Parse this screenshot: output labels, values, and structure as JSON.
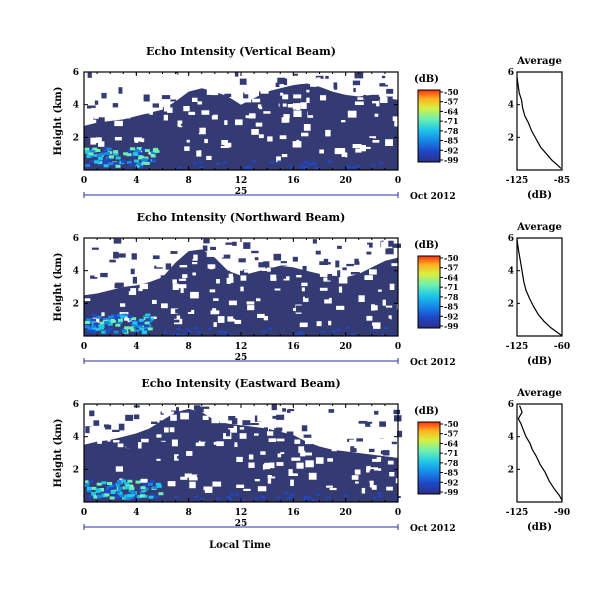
{
  "figure": {
    "date_label": "Oct 2012",
    "xlabel": "Local Time",
    "day_label": "25",
    "colorbar_unit": "(dB)",
    "colormap": [
      "#2b2f86",
      "#1e48c8",
      "#1888e8",
      "#1ec8e8",
      "#6ef0b0",
      "#d8f040",
      "#ffb020",
      "#ff3010"
    ],
    "fill_color": "#343a73"
  },
  "chart_data": [
    {
      "type": "heatmap",
      "title": "Echo Intensity (Vertical Beam)",
      "ylabel": "Height (km)",
      "x_ticks": [
        "0",
        "4",
        "8",
        "12",
        "16",
        "20",
        "0"
      ],
      "y_ticks": [
        "6",
        "4",
        "2"
      ],
      "xlim": [
        0,
        24
      ],
      "ylim": [
        0,
        6
      ],
      "colorbar_ticks": [
        "-50",
        "-57",
        "-64",
        "-71",
        "-78",
        "-85",
        "-92",
        "-99"
      ],
      "top_boundary_km": [
        [
          0,
          2.7
        ],
        [
          1,
          2.9
        ],
        [
          2,
          3.0
        ],
        [
          3,
          3.1
        ],
        [
          4,
          3.3
        ],
        [
          5,
          3.5
        ],
        [
          6,
          3.7
        ],
        [
          7,
          4.2
        ],
        [
          8,
          4.8
        ],
        [
          9,
          5.0
        ],
        [
          10,
          4.8
        ],
        [
          11,
          4.5
        ],
        [
          12,
          4.0
        ],
        [
          13,
          4.4
        ],
        [
          14,
          4.8
        ],
        [
          15,
          5.0
        ],
        [
          16,
          5.2
        ],
        [
          17,
          5.3
        ],
        [
          18,
          5.1
        ],
        [
          19,
          4.8
        ],
        [
          20,
          4.6
        ],
        [
          21,
          4.5
        ],
        [
          22,
          4.6
        ],
        [
          23,
          4.4
        ],
        [
          24,
          4.3
        ]
      ],
      "strong_echo_hours": [
        0,
        5.5
      ],
      "average": {
        "title": "Average",
        "xlabel": "(dB)",
        "x_ticks": [
          "-125",
          "-85"
        ],
        "xlim": [
          -125,
          -85
        ],
        "y_ticks": [
          "6",
          "4",
          "2"
        ],
        "profile": [
          [
            -125,
            5.7
          ],
          [
            -124,
            5.2
          ],
          [
            -123,
            4.7
          ],
          [
            -121,
            4.3
          ],
          [
            -120,
            3.8
          ],
          [
            -118,
            3.3
          ],
          [
            -115,
            2.9
          ],
          [
            -112,
            2.4
          ],
          [
            -108,
            1.9
          ],
          [
            -104,
            1.4
          ],
          [
            -99,
            1.0
          ],
          [
            -94,
            0.6
          ],
          [
            -89,
            0.3
          ],
          [
            -86,
            0.1
          ]
        ]
      }
    },
    {
      "type": "heatmap",
      "title": "Echo Intensity (Northward Beam)",
      "ylabel": "Height (km)",
      "x_ticks": [
        "0",
        "4",
        "8",
        "12",
        "16",
        "20",
        "0"
      ],
      "y_ticks": [
        "6",
        "4",
        "2"
      ],
      "xlim": [
        0,
        24
      ],
      "ylim": [
        0,
        6
      ],
      "colorbar_ticks": [
        "-50",
        "-57",
        "-64",
        "-71",
        "-78",
        "-85",
        "-92",
        "-99"
      ],
      "top_boundary_km": [
        [
          0,
          2.5
        ],
        [
          1,
          2.6
        ],
        [
          2,
          2.8
        ],
        [
          3,
          3.0
        ],
        [
          4,
          3.1
        ],
        [
          5,
          3.3
        ],
        [
          6,
          3.6
        ],
        [
          7,
          4.5
        ],
        [
          8,
          5.2
        ],
        [
          9,
          5.3
        ],
        [
          10,
          4.8
        ],
        [
          11,
          4.0
        ],
        [
          12,
          3.7
        ],
        [
          13,
          3.9
        ],
        [
          14,
          4.1
        ],
        [
          15,
          4.3
        ],
        [
          16,
          4.2
        ],
        [
          17,
          4.0
        ],
        [
          18,
          3.8
        ],
        [
          19,
          3.7
        ],
        [
          20,
          3.6
        ],
        [
          21,
          3.8
        ],
        [
          22,
          4.2
        ],
        [
          23,
          4.6
        ],
        [
          24,
          4.8
        ]
      ],
      "strong_echo_hours": [
        0,
        5.0
      ],
      "average": {
        "title": "Average",
        "xlabel": "(dB)",
        "x_ticks": [
          "-125",
          "-60"
        ],
        "xlim": [
          -125,
          -60
        ],
        "y_ticks": [
          "6",
          "4",
          "2"
        ],
        "profile": [
          [
            -125,
            5.9
          ],
          [
            -123,
            5.3
          ],
          [
            -121,
            4.8
          ],
          [
            -119,
            4.3
          ],
          [
            -117,
            3.8
          ],
          [
            -115,
            3.3
          ],
          [
            -112,
            2.8
          ],
          [
            -107,
            2.3
          ],
          [
            -101,
            1.8
          ],
          [
            -94,
            1.3
          ],
          [
            -86,
            0.9
          ],
          [
            -76,
            0.5
          ],
          [
            -66,
            0.2
          ],
          [
            -61,
            0.05
          ]
        ]
      }
    },
    {
      "type": "heatmap",
      "title": "Echo Intensity (Eastward Beam)",
      "ylabel": "Height (km)",
      "x_ticks": [
        "0",
        "4",
        "8",
        "12",
        "16",
        "20",
        "0"
      ],
      "y_ticks": [
        "6",
        "4",
        "2"
      ],
      "xlim": [
        0,
        24
      ],
      "ylim": [
        0,
        6
      ],
      "colorbar_ticks": [
        "-50",
        "-57",
        "-64",
        "-71",
        "-78",
        "-85",
        "-92",
        "-99"
      ],
      "top_boundary_km": [
        [
          0,
          3.5
        ],
        [
          1,
          3.7
        ],
        [
          2,
          3.8
        ],
        [
          3,
          4.0
        ],
        [
          4,
          4.2
        ],
        [
          5,
          4.5
        ],
        [
          6,
          5.0
        ],
        [
          7,
          5.5
        ],
        [
          8,
          5.7
        ],
        [
          9,
          5.5
        ],
        [
          10,
          5.0
        ],
        [
          11,
          4.8
        ],
        [
          12,
          4.7
        ],
        [
          13,
          4.6
        ],
        [
          14,
          4.5
        ],
        [
          15,
          4.3
        ],
        [
          16,
          4.1
        ],
        [
          17,
          3.7
        ],
        [
          18,
          3.4
        ],
        [
          19,
          3.2
        ],
        [
          20,
          3.1
        ],
        [
          21,
          3.0
        ],
        [
          22,
          2.9
        ],
        [
          23,
          2.8
        ],
        [
          24,
          2.7
        ]
      ],
      "strong_echo_hours": [
        0,
        5.8
      ],
      "average": {
        "title": "Average",
        "xlabel": "(dB)",
        "x_ticks": [
          "-125",
          "-90"
        ],
        "xlim": [
          -125,
          -90
        ],
        "y_ticks": [
          "6",
          "4",
          "2"
        ],
        "profile": [
          [
            -123,
            5.9
          ],
          [
            -121,
            5.5
          ],
          [
            -124,
            5.1
          ],
          [
            -122,
            4.8
          ],
          [
            -120,
            4.4
          ],
          [
            -118,
            4.0
          ],
          [
            -115,
            3.6
          ],
          [
            -113,
            3.2
          ],
          [
            -110,
            2.8
          ],
          [
            -107,
            2.3
          ],
          [
            -103,
            1.8
          ],
          [
            -100,
            1.3
          ],
          [
            -96,
            0.8
          ],
          [
            -92,
            0.4
          ],
          [
            -90,
            0.1
          ]
        ]
      }
    }
  ]
}
